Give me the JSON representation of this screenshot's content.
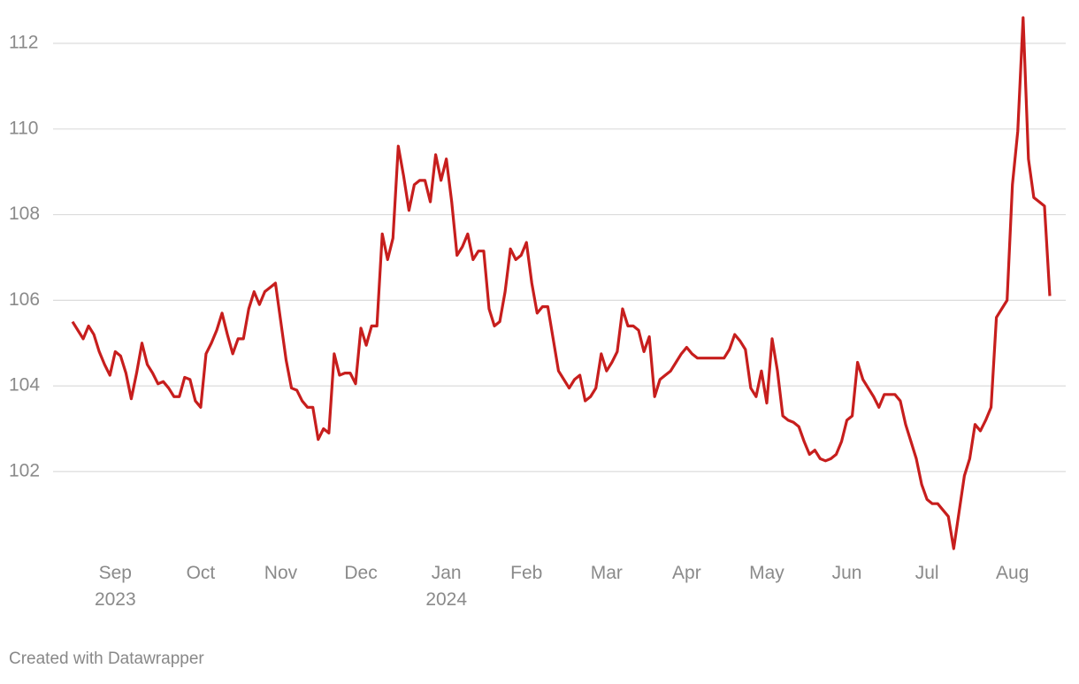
{
  "chart_data": {
    "type": "line",
    "categories": [
      null,
      null,
      null,
      null,
      null,
      null,
      null,
      null,
      "Sep 2023",
      null,
      null,
      null,
      null,
      null,
      null,
      null,
      null,
      null,
      null,
      null,
      null,
      null,
      null,
      null,
      "Oct",
      null,
      null,
      null,
      null,
      null,
      null,
      null,
      null,
      null,
      null,
      null,
      null,
      null,
      null,
      "Nov",
      null,
      null,
      null,
      null,
      null,
      null,
      null,
      null,
      null,
      null,
      null,
      null,
      null,
      null,
      "Dec",
      null,
      null,
      null,
      null,
      null,
      null,
      null,
      null,
      null,
      null,
      null,
      null,
      null,
      null,
      null,
      "Jan 2024",
      null,
      null,
      null,
      null,
      null,
      null,
      null,
      null,
      null,
      null,
      null,
      null,
      null,
      null,
      "Feb",
      null,
      null,
      null,
      null,
      null,
      null,
      null,
      null,
      null,
      null,
      null,
      null,
      null,
      null,
      "Mar",
      null,
      null,
      null,
      null,
      null,
      null,
      null,
      null,
      null,
      null,
      null,
      null,
      null,
      null,
      "Apr",
      null,
      null,
      null,
      null,
      null,
      null,
      null,
      null,
      null,
      null,
      null,
      null,
      null,
      null,
      "May",
      null,
      null,
      null,
      null,
      null,
      null,
      null,
      null,
      null,
      null,
      null,
      null,
      null,
      null,
      "Jun",
      null,
      null,
      null,
      null,
      null,
      null,
      null,
      null,
      null,
      null,
      null,
      null,
      null,
      null,
      "Jul",
      null,
      null,
      null,
      null,
      null,
      null,
      null,
      null,
      null,
      null,
      null,
      null,
      null,
      null,
      null,
      "Aug",
      null,
      null,
      null,
      null,
      null,
      null,
      null
    ],
    "series": [
      {
        "color": "#c71e1d",
        "values": [
          105.5,
          105.3,
          105.1,
          105.4,
          105.2,
          104.8,
          104.5,
          104.25,
          104.8,
          104.7,
          104.3,
          103.7,
          104.3,
          105.0,
          104.5,
          104.3,
          104.05,
          104.1,
          103.95,
          103.75,
          103.75,
          104.2,
          104.15,
          103.65,
          103.5,
          104.75,
          105.0,
          105.3,
          105.7,
          105.2,
          104.75,
          105.1,
          105.1,
          105.8,
          106.2,
          105.9,
          106.2,
          106.3,
          106.4,
          105.5,
          104.6,
          103.95,
          103.9,
          103.65,
          103.5,
          103.5,
          102.75,
          103.0,
          102.9,
          104.75,
          104.25,
          104.3,
          104.3,
          104.05,
          105.35,
          104.95,
          105.4,
          105.4,
          107.55,
          106.95,
          107.45,
          109.6,
          108.9,
          108.1,
          108.7,
          108.8,
          108.8,
          108.3,
          109.4,
          108.8,
          109.3,
          108.3,
          107.05,
          107.25,
          107.55,
          106.95,
          107.15,
          107.15,
          105.8,
          105.4,
          105.5,
          106.2,
          107.2,
          106.95,
          107.05,
          107.35,
          106.4,
          105.7,
          105.85,
          105.85,
          105.1,
          104.35,
          104.15,
          103.95,
          104.15,
          104.25,
          103.65,
          103.75,
          103.95,
          104.75,
          104.35,
          104.55,
          104.8,
          105.8,
          105.4,
          105.4,
          105.3,
          104.8,
          105.15,
          103.75,
          104.15,
          104.25,
          104.35,
          104.55,
          104.75,
          104.9,
          104.75,
          104.65,
          104.65,
          104.65,
          104.65,
          104.65,
          104.65,
          104.85,
          105.2,
          105.05,
          104.85,
          103.95,
          103.75,
          104.35,
          103.6,
          105.1,
          104.35,
          103.3,
          103.2,
          103.15,
          103.05,
          102.7,
          102.4,
          102.5,
          102.3,
          102.25,
          102.3,
          102.4,
          102.7,
          103.2,
          103.3,
          104.55,
          104.15,
          103.95,
          103.75,
          103.5,
          103.8,
          103.8,
          103.8,
          103.65,
          103.1,
          102.7,
          102.3,
          101.7,
          101.35,
          101.25,
          101.25,
          101.1,
          100.95,
          100.2,
          101.05,
          101.9,
          102.3,
          103.1,
          102.95,
          103.2,
          103.5,
          105.6,
          105.8,
          106.0,
          108.7,
          109.95,
          112.6,
          109.3,
          108.4,
          108.3,
          108.2,
          106.1
        ]
      }
    ],
    "ylim": [
      100.2,
      112.6
    ],
    "yticks": [
      102,
      104,
      106,
      108,
      110,
      112
    ],
    "grid": true,
    "credit": "Created with Datawrapper"
  }
}
